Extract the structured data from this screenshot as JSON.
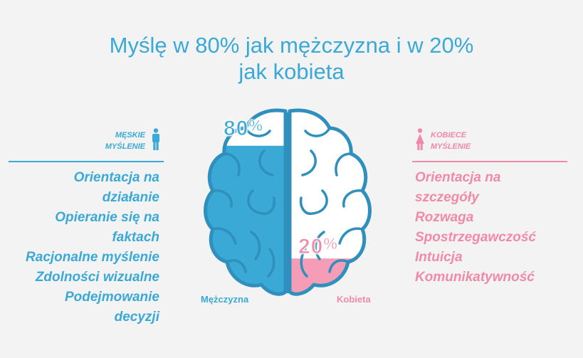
{
  "title": {
    "line1": "Myślę w 80% jak mężczyzna i w 20%",
    "line2": "jak kobieta"
  },
  "male": {
    "heading_line1": "MĘSKIE",
    "heading_line2": "MYŚLENIE",
    "icon": "male-person-icon",
    "percent": "80",
    "percent_symbol": "%",
    "label": "Mężczyzna",
    "color": "#3aa9d6",
    "traits": [
      "Orientacja na",
      "działanie",
      "Opieranie się na",
      "faktach",
      "Racjonalne myślenie",
      "Zdolności wizualne",
      "Podejmowanie",
      "decyzji"
    ]
  },
  "female": {
    "heading_line1": "KOBIECE",
    "heading_line2": "MYŚLENIE",
    "icon": "female-person-icon",
    "percent": "20",
    "percent_symbol": "%",
    "label": "Kobieta",
    "color": "#f08aa8",
    "traits": [
      "Orientacja na",
      "szczegóły",
      "Rozwaga",
      "Spostrzegawczość",
      "Intuicja",
      "Komunikatywność"
    ]
  },
  "brain": {
    "icon": "brain-icon",
    "male_fill": 0.8,
    "female_fill": 0.2
  }
}
